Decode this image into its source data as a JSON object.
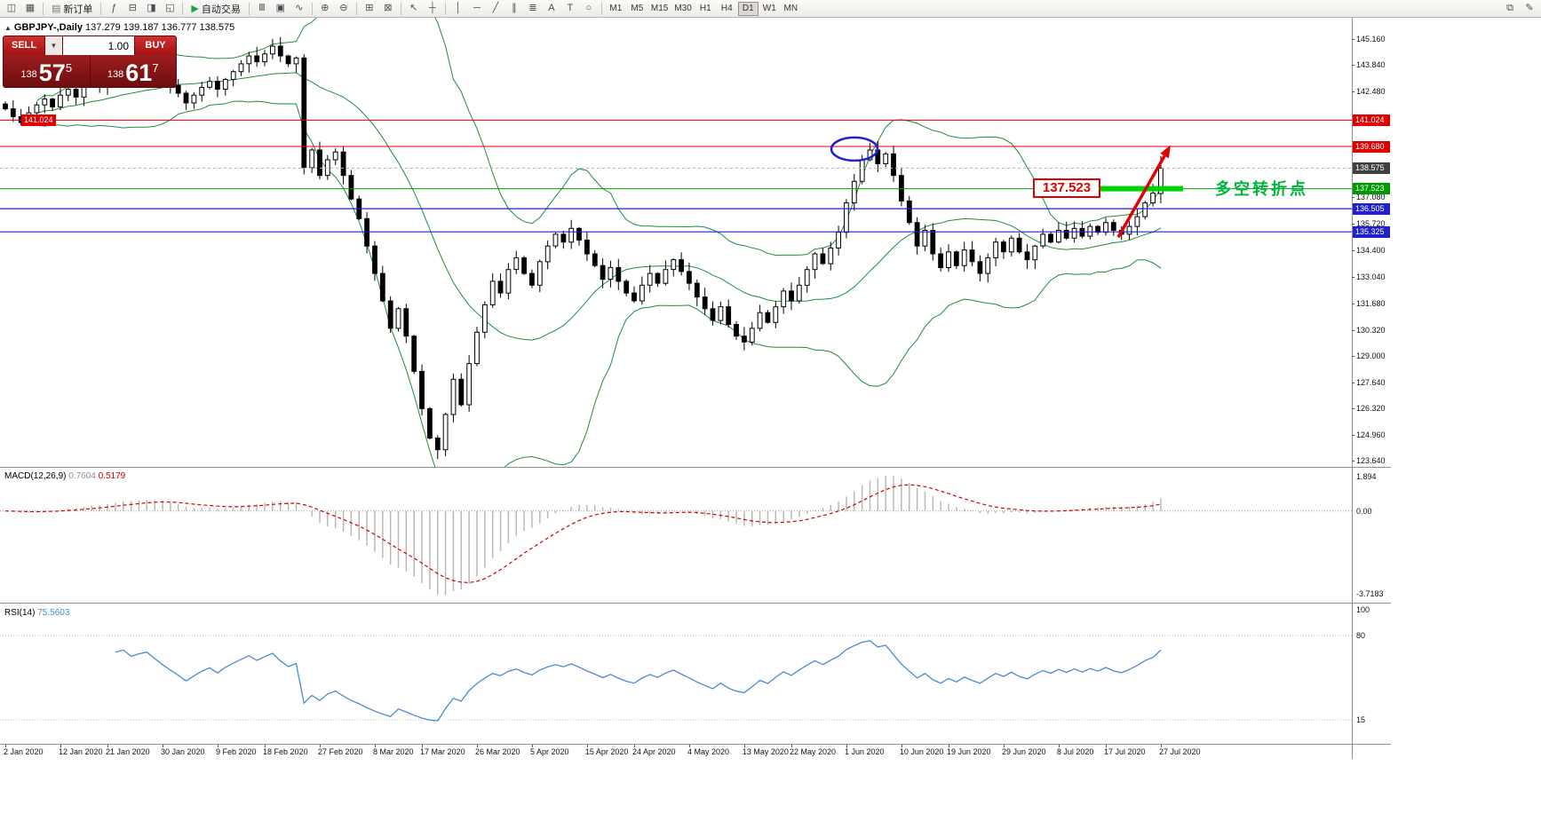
{
  "toolbar": {
    "groups": [
      {
        "items": [
          {
            "t": "icon",
            "name": "new-window-icon",
            "g": "◫"
          },
          {
            "t": "icon",
            "name": "tile-windows-icon",
            "g": "▦"
          }
        ]
      },
      {
        "items": [
          {
            "t": "textbtn",
            "name": "new-order-button",
            "icon_name": "new-order-icon",
            "icon": "▤",
            "label": "新订单"
          }
        ]
      },
      {
        "items": [
          {
            "t": "icon",
            "name": "indicator-list-icon",
            "g": "ƒ"
          },
          {
            "t": "icon",
            "name": "market-watch-icon",
            "g": "⊟"
          },
          {
            "t": "icon",
            "name": "navigator-icon",
            "g": "◨"
          },
          {
            "t": "icon",
            "name": "terminal-icon",
            "g": "◱"
          }
        ]
      },
      {
        "items": [
          {
            "t": "textbtn",
            "name": "auto-trading-button",
            "icon_name": "auto-trading-play-icon",
            "icon": "▶",
            "icon_color": "#1fa33c",
            "label": "自动交易"
          }
        ]
      },
      {
        "items": [
          {
            "t": "icon",
            "name": "bar-chart-icon",
            "g": "Ⅲ"
          },
          {
            "t": "icon",
            "name": "candlestick-chart-icon",
            "g": "▣"
          },
          {
            "t": "icon",
            "name": "line-chart-icon",
            "g": "∿"
          }
        ]
      },
      {
        "items": [
          {
            "t": "icon",
            "name": "zoom-in-icon",
            "g": "⊕"
          },
          {
            "t": "icon",
            "name": "zoom-out-icon",
            "g": "⊖"
          }
        ]
      },
      {
        "items": [
          {
            "t": "icon",
            "name": "arrange-windows-icon",
            "g": "⊞"
          },
          {
            "t": "icon",
            "name": "grid-icon",
            "g": "⊠"
          }
        ]
      },
      {
        "items": [
          {
            "t": "icon",
            "name": "cursor-icon",
            "g": "↖"
          },
          {
            "t": "icon",
            "name": "crosshair-icon",
            "g": "┼"
          }
        ]
      },
      {
        "items": [
          {
            "t": "icon",
            "name": "vertical-line-icon",
            "g": "│"
          },
          {
            "t": "icon",
            "name": "horizontal-line-icon",
            "g": "─"
          },
          {
            "t": "icon",
            "name": "trendline-icon",
            "g": "╱"
          },
          {
            "t": "icon",
            "name": "channel-icon",
            "g": "∥"
          },
          {
            "t": "icon",
            "name": "fibonacci-icon",
            "g": "≣"
          },
          {
            "t": "icon",
            "name": "text-icon",
            "g": "A"
          },
          {
            "t": "icon",
            "name": "label-icon",
            "g": "T"
          },
          {
            "t": "icon",
            "name": "shapes-icon",
            "g": "○"
          }
        ]
      },
      {
        "type": "timeframes"
      },
      {
        "right": true,
        "items": [
          {
            "t": "icon",
            "name": "windows-list-icon",
            "g": "⧉"
          },
          {
            "t": "icon",
            "name": "edit-icon",
            "g": "✎"
          }
        ]
      }
    ],
    "timeframes": [
      "M1",
      "M5",
      "M15",
      "M30",
      "H1",
      "H4",
      "D1",
      "W1",
      "MN"
    ],
    "active_timeframe": "D1"
  },
  "symbol_header": {
    "collapse_icon": "▲",
    "title": "GBPJPY-,Daily",
    "ohlc": "137.279 139.187 136.777 138.575"
  },
  "trade_panel": {
    "sell_label": "SELL",
    "buy_label": "BUY",
    "volume": "1.00",
    "dropdown_icon": "▼",
    "sell_price": {
      "prefix": "138",
      "big": "57",
      "sup": "5"
    },
    "buy_price": {
      "prefix": "138",
      "big": "61",
      "sup": "7"
    }
  },
  "annotations": {
    "left_price_label": "141.024",
    "price_box": "137.523",
    "turning_point_label": "多空转折点",
    "arrow_color": "#e00000",
    "ellipse_color": "#2222cc",
    "turning_bar_color": "#00d200"
  },
  "chart_data": {
    "type": "candlestick",
    "symbol": "GBPJPY-",
    "timeframe": "Daily",
    "bid": "138.575",
    "candles": {
      "closes": [
        141.6,
        141.2,
        140.9,
        141.4,
        141.8,
        142.1,
        141.7,
        142.3,
        142.6,
        142.2,
        142.8,
        143.1,
        142.7,
        143.3,
        143.6,
        143.9,
        143.5,
        143.8,
        144.0,
        143.6,
        143.2,
        142.8,
        142.4,
        141.9,
        142.3,
        142.7,
        143.0,
        142.6,
        143.1,
        143.5,
        143.9,
        144.3,
        144.0,
        144.4,
        144.8,
        144.3,
        143.9,
        144.2,
        138.6,
        139.5,
        138.2,
        139.0,
        139.4,
        138.2,
        137.0,
        136.0,
        134.6,
        133.2,
        131.8,
        130.4,
        131.4,
        130.0,
        128.2,
        126.3,
        124.8,
        124.2,
        126.0,
        127.8,
        126.5,
        128.6,
        130.2,
        131.6,
        132.8,
        132.2,
        133.4,
        134.0,
        133.2,
        132.6,
        133.8,
        134.6,
        135.2,
        134.8,
        135.5,
        134.9,
        134.2,
        133.6,
        132.9,
        133.5,
        132.8,
        132.2,
        131.8,
        132.6,
        133.2,
        132.7,
        133.4,
        133.9,
        133.3,
        132.7,
        132.0,
        131.4,
        130.8,
        131.5,
        130.6,
        130.0,
        129.7,
        130.4,
        131.2,
        130.7,
        131.5,
        132.3,
        131.8,
        132.6,
        133.4,
        134.2,
        133.7,
        134.5,
        135.3,
        136.8,
        137.9,
        139.0,
        139.5,
        138.8,
        139.3,
        138.2,
        136.9,
        135.8,
        134.6,
        135.4,
        134.2,
        133.5,
        134.3,
        133.6,
        134.4,
        133.8,
        133.2,
        134.0,
        134.8,
        134.3,
        135.0,
        134.3,
        133.9,
        134.6,
        135.2,
        134.8,
        135.4,
        135.0,
        135.5,
        135.1,
        135.6,
        135.3,
        135.8,
        135.4,
        135.2,
        135.6,
        136.1,
        136.8,
        137.3,
        138.575
      ],
      "last_ohlc": [
        137.279,
        139.187,
        136.777,
        138.575
      ]
    },
    "levels": [
      {
        "price": "141.024",
        "color": "#e00000",
        "width": 1
      },
      {
        "price": "139.680",
        "color": "#e00000",
        "width": 1
      },
      {
        "price": "138.575",
        "color": "#b0b0b0",
        "width": 1,
        "dash": "3 3"
      },
      {
        "price": "137.523",
        "color": "#00a000",
        "width": 1
      },
      {
        "price": "136.505",
        "color": "#2020cc",
        "width": 1.2
      },
      {
        "price": "135.325",
        "color": "#2020cc",
        "width": 1.2
      }
    ],
    "price_ticks": [
      "145.160",
      "143.840",
      "142.480",
      "137.080",
      "135.720",
      "134.400",
      "133.040",
      "131.680",
      "130.320",
      "129.000",
      "127.640",
      "126.320",
      "124.960",
      "123.640"
    ],
    "axis_badges": [
      {
        "label": "141.024",
        "color": "#e00000"
      },
      {
        "label": "139.680",
        "color": "#e00000"
      },
      {
        "label": "138.575",
        "color": "#404040"
      },
      {
        "label": "137.523",
        "color": "#009a00"
      },
      {
        "label": "136.505",
        "color": "#2020cc"
      },
      {
        "label": "135.325",
        "color": "#2020cc"
      }
    ],
    "dates": [
      "2 Jan 2020",
      "12 Jan 2020",
      "21 Jan 2020",
      "30 Jan 2020",
      "9 Feb 2020",
      "18 Feb 2020",
      "27 Feb 2020",
      "8 Mar 2020",
      "17 Mar 2020",
      "26 Mar 2020",
      "5 Apr 2020",
      "15 Apr 2020",
      "24 Apr 2020",
      "4 May 2020",
      "13 May 2020",
      "22 May 2020",
      "1 Jun 2020",
      "10 Jun 2020",
      "19 Jun 2020",
      "29 Jun 2020",
      "8 Jul 2020",
      "17 Jul 2020",
      "27 Jul 2020"
    ],
    "indicators": {
      "bollinger": {
        "name": "Bollinger Bands",
        "period": 20,
        "deviation": 2,
        "color": "#1e8c3c"
      },
      "macd": {
        "name": "MACD(12,26,9)",
        "main": "0.7604",
        "signal": "0.5179",
        "scale_max": "1.894",
        "scale_zero": "0.00",
        "scale_min": "-3.7183",
        "hist_color": "#b8b8b8",
        "signal_color": "#cc0000"
      },
      "rsi": {
        "name": "RSI(14)",
        "value": "75.5603",
        "levels": [
          "100",
          "80",
          "15"
        ],
        "color": "#4a8ad4"
      }
    }
  }
}
